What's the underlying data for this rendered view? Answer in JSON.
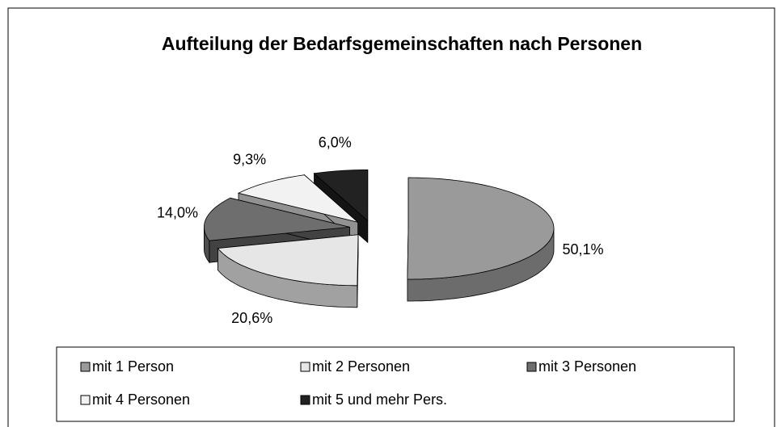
{
  "chart_data": {
    "type": "pie3d",
    "title": "Aufteilung der Bedarfsgemeinschaften nach Personen",
    "categories": [
      "mit 1 Person",
      "mit 2 Personen",
      "mit 3 Personen",
      "mit 4 Personen",
      "mit 5 und mehr Pers."
    ],
    "values": [
      50.1,
      20.6,
      14.0,
      9.3,
      6.0
    ],
    "value_labels": [
      "50,1%",
      "20,6%",
      "14,0%",
      "9,3%",
      "6,0%"
    ],
    "colors": [
      "#9a9a9a",
      "#e6e6e6",
      "#6e6e6e",
      "#f2f2f2",
      "#222222"
    ],
    "legend": "bottom"
  }
}
